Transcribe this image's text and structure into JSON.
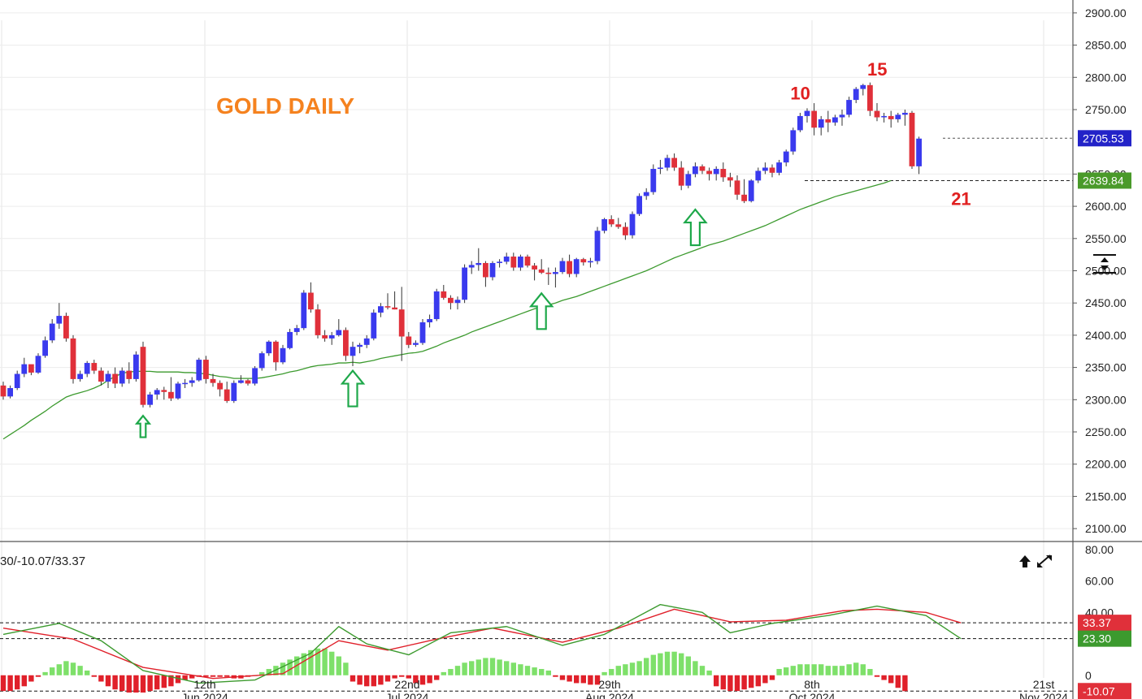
{
  "chart_data": {
    "type": "candlestick",
    "title": "GOLD DAILY",
    "price_axis": {
      "ticks": [
        "2900.00",
        "2850.00",
        "2800.00",
        "2750.00",
        "2650.00",
        "2600.00",
        "2550.00",
        "2500.00",
        "2450.00",
        "2400.00",
        "2350.00",
        "2300.00",
        "2250.00",
        "2200.00",
        "2150.00",
        "2100.00"
      ],
      "range": [
        2080,
        2920
      ]
    },
    "x_axis": {
      "labels": [
        {
          "day": "th",
          "month": "2024"
        },
        {
          "day": "12th",
          "month": "Jun 2024"
        },
        {
          "day": "22nd",
          "month": "Jul 2024"
        },
        {
          "day": "29th",
          "month": "Aug 2024"
        },
        {
          "day": "8th",
          "month": "Oct 2024"
        },
        {
          "day": "21st",
          "month": "Nov 2024"
        }
      ]
    },
    "last_price": {
      "label": "2705.53",
      "value": 2705.53,
      "color": "#2323c8"
    },
    "ma_value": {
      "label": "2639.84",
      "value": 2639.84,
      "color": "#4a9a2a"
    },
    "up_color": "#3a3aee",
    "down_color": "#e0303a",
    "ma_color": "#3c9a2e",
    "candles": [
      [
        2322,
        2328,
        2300,
        2305
      ],
      [
        2305,
        2322,
        2302,
        2318
      ],
      [
        2318,
        2345,
        2315,
        2340
      ],
      [
        2340,
        2365,
        2335,
        2355
      ],
      [
        2355,
        2352,
        2338,
        2342
      ],
      [
        2342,
        2372,
        2340,
        2368
      ],
      [
        2368,
        2398,
        2365,
        2392
      ],
      [
        2392,
        2425,
        2388,
        2418
      ],
      [
        2418,
        2450,
        2410,
        2430
      ],
      [
        2430,
        2435,
        2390,
        2395
      ],
      [
        2395,
        2400,
        2325,
        2332
      ],
      [
        2332,
        2345,
        2328,
        2340
      ],
      [
        2340,
        2360,
        2335,
        2357
      ],
      [
        2357,
        2362,
        2340,
        2345
      ],
      [
        2345,
        2350,
        2322,
        2328
      ],
      [
        2328,
        2345,
        2318,
        2340
      ],
      [
        2340,
        2350,
        2318,
        2325
      ],
      [
        2325,
        2350,
        2320,
        2345
      ],
      [
        2345,
        2358,
        2325,
        2332
      ],
      [
        2332,
        2375,
        2328,
        2370
      ],
      [
        2382,
        2390,
        2288,
        2292
      ],
      [
        2292,
        2312,
        2288,
        2308
      ],
      [
        2308,
        2318,
        2300,
        2315
      ],
      [
        2315,
        2320,
        2300,
        2312
      ],
      [
        2312,
        2335,
        2298,
        2302
      ],
      [
        2302,
        2328,
        2300,
        2325
      ],
      [
        2325,
        2332,
        2318,
        2326
      ],
      [
        2326,
        2335,
        2320,
        2330
      ],
      [
        2330,
        2365,
        2328,
        2362
      ],
      [
        2362,
        2368,
        2325,
        2332
      ],
      [
        2332,
        2340,
        2320,
        2326
      ],
      [
        2326,
        2330,
        2305,
        2316
      ],
      [
        2316,
        2328,
        2295,
        2298
      ],
      [
        2298,
        2330,
        2295,
        2326
      ],
      [
        2326,
        2338,
        2325,
        2330
      ],
      [
        2330,
        2332,
        2322,
        2325
      ],
      [
        2325,
        2352,
        2322,
        2349
      ],
      [
        2349,
        2375,
        2345,
        2372
      ],
      [
        2372,
        2392,
        2368,
        2390
      ],
      [
        2390,
        2392,
        2345,
        2358
      ],
      [
        2358,
        2385,
        2355,
        2380
      ],
      [
        2380,
        2410,
        2378,
        2405
      ],
      [
        2405,
        2416,
        2400,
        2411
      ],
      [
        2411,
        2470,
        2408,
        2466
      ],
      [
        2466,
        2482,
        2435,
        2440
      ],
      [
        2440,
        2448,
        2395,
        2400
      ],
      [
        2400,
        2408,
        2390,
        2395
      ],
      [
        2395,
        2405,
        2385,
        2400
      ],
      [
        2400,
        2425,
        2398,
        2408
      ],
      [
        2408,
        2412,
        2360,
        2368
      ],
      [
        2368,
        2390,
        2352,
        2382
      ],
      [
        2382,
        2388,
        2372,
        2385
      ],
      [
        2385,
        2400,
        2380,
        2395
      ],
      [
        2395,
        2440,
        2392,
        2435
      ],
      [
        2435,
        2450,
        2428,
        2445
      ],
      [
        2445,
        2465,
        2440,
        2443
      ],
      [
        2443,
        2468,
        2440,
        2440
      ],
      [
        2440,
        2475,
        2360,
        2398
      ],
      [
        2398,
        2405,
        2380,
        2385
      ],
      [
        2385,
        2392,
        2382,
        2388
      ],
      [
        2388,
        2425,
        2385,
        2420
      ],
      [
        2420,
        2432,
        2412,
        2425
      ],
      [
        2425,
        2472,
        2422,
        2468
      ],
      [
        2468,
        2478,
        2455,
        2458
      ],
      [
        2458,
        2462,
        2440,
        2450
      ],
      [
        2450,
        2460,
        2440,
        2455
      ],
      [
        2455,
        2510,
        2450,
        2505
      ],
      [
        2505,
        2515,
        2495,
        2509
      ],
      [
        2509,
        2535,
        2500,
        2512
      ],
      [
        2512,
        2515,
        2475,
        2490
      ],
      [
        2490,
        2515,
        2485,
        2512
      ],
      [
        2512,
        2518,
        2505,
        2514
      ],
      [
        2514,
        2528,
        2510,
        2522
      ],
      [
        2522,
        2528,
        2500,
        2505
      ],
      [
        2505,
        2525,
        2500,
        2522
      ],
      [
        2522,
        2525,
        2505,
        2508
      ],
      [
        2508,
        2512,
        2485,
        2502
      ],
      [
        2502,
        2518,
        2495,
        2497
      ],
      [
        2497,
        2505,
        2478,
        2495
      ],
      [
        2495,
        2505,
        2474,
        2498
      ],
      [
        2498,
        2520,
        2495,
        2515
      ],
      [
        2515,
        2525,
        2490,
        2495
      ],
      [
        2495,
        2520,
        2490,
        2518
      ],
      [
        2518,
        2520,
        2508,
        2513
      ],
      [
        2513,
        2520,
        2505,
        2515
      ],
      [
        2515,
        2568,
        2510,
        2562
      ],
      [
        2562,
        2582,
        2558,
        2580
      ],
      [
        2580,
        2586,
        2568,
        2572
      ],
      [
        2572,
        2582,
        2565,
        2568
      ],
      [
        2568,
        2575,
        2548,
        2555
      ],
      [
        2555,
        2592,
        2550,
        2588
      ],
      [
        2588,
        2620,
        2585,
        2616
      ],
      [
        2616,
        2628,
        2610,
        2622
      ],
      [
        2622,
        2665,
        2618,
        2658
      ],
      [
        2658,
        2672,
        2650,
        2660
      ],
      [
        2660,
        2680,
        2655,
        2675
      ],
      [
        2675,
        2682,
        2655,
        2660
      ],
      [
        2660,
        2670,
        2625,
        2632
      ],
      [
        2632,
        2655,
        2628,
        2650
      ],
      [
        2650,
        2668,
        2645,
        2662
      ],
      [
        2662,
        2665,
        2650,
        2655
      ],
      [
        2655,
        2660,
        2640,
        2650
      ],
      [
        2650,
        2662,
        2640,
        2658
      ],
      [
        2658,
        2668,
        2638,
        2645
      ],
      [
        2645,
        2652,
        2630,
        2640
      ],
      [
        2640,
        2648,
        2610,
        2618
      ],
      [
        2618,
        2642,
        2605,
        2608
      ],
      [
        2608,
        2642,
        2606,
        2640
      ],
      [
        2640,
        2660,
        2636,
        2655
      ],
      [
        2655,
        2668,
        2650,
        2660
      ],
      [
        2660,
        2665,
        2645,
        2652
      ],
      [
        2652,
        2672,
        2648,
        2668
      ],
      [
        2668,
        2688,
        2662,
        2685
      ],
      [
        2685,
        2722,
        2680,
        2718
      ],
      [
        2718,
        2745,
        2715,
        2740
      ],
      [
        2740,
        2752,
        2730,
        2748
      ],
      [
        2748,
        2760,
        2710,
        2722
      ],
      [
        2722,
        2740,
        2710,
        2735
      ],
      [
        2735,
        2748,
        2715,
        2730
      ],
      [
        2730,
        2742,
        2725,
        2738
      ],
      [
        2738,
        2750,
        2725,
        2742
      ],
      [
        2742,
        2770,
        2738,
        2765
      ],
      [
        2765,
        2785,
        2760,
        2782
      ],
      [
        2782,
        2790,
        2772,
        2788
      ],
      [
        2788,
        2792,
        2740,
        2748
      ],
      [
        2748,
        2760,
        2732,
        2738
      ],
      [
        2738,
        2745,
        2730,
        2740
      ],
      [
        2740,
        2748,
        2722,
        2735
      ],
      [
        2735,
        2745,
        2730,
        2742
      ],
      [
        2742,
        2750,
        2725,
        2745
      ],
      [
        2745,
        2748,
        2658,
        2662
      ],
      [
        2662,
        2708,
        2650,
        2705
      ]
    ],
    "ma": [
      2239,
      2246,
      2253,
      2260,
      2268,
      2275,
      2282,
      2290,
      2297,
      2304,
      2308,
      2311,
      2314,
      2318,
      2323,
      2330,
      2336,
      2341,
      2343,
      2344,
      2344,
      2344,
      2343,
      2343,
      2343,
      2343,
      2342,
      2342,
      2341,
      2340,
      2338,
      2336,
      2335,
      2333,
      2333,
      2333,
      2333,
      2334,
      2336,
      2338,
      2340,
      2343,
      2345,
      2348,
      2351,
      2353,
      2354,
      2355,
      2357,
      2357,
      2358,
      2357,
      2359,
      2361,
      2364,
      2366,
      2368,
      2370,
      2372,
      2373,
      2375,
      2379,
      2383,
      2388,
      2392,
      2396,
      2400,
      2405,
      2409,
      2413,
      2417,
      2421,
      2425,
      2429,
      2433,
      2437,
      2441,
      2444,
      2447,
      2450,
      2454,
      2457,
      2460,
      2464,
      2468,
      2472,
      2476,
      2480,
      2484,
      2488,
      2492,
      2496,
      2500,
      2505,
      2510,
      2515,
      2520,
      2524,
      2528,
      2532,
      2536,
      2540,
      2543,
      2546,
      2550,
      2554,
      2558,
      2562,
      2566,
      2570,
      2575,
      2580,
      2585,
      2590,
      2595,
      2599,
      2603,
      2607,
      2611,
      2615,
      2618,
      2621,
      2624,
      2627,
      2630,
      2633,
      2636,
      2640
    ],
    "arrows": [
      {
        "x_index": 20,
        "price": 2275
      },
      {
        "x_index": 50,
        "price": 2345
      },
      {
        "x_index": 77,
        "price": 2465
      },
      {
        "x_index": 99,
        "price": 2595
      }
    ],
    "annotations": [
      {
        "text": "10",
        "x_index": 114,
        "price": 2766
      },
      {
        "text": "15",
        "x_index": 125,
        "price": 2803
      },
      {
        "text": "21",
        "x_index": 137,
        "price": 2602
      }
    ],
    "indicator": {
      "legend": "30/-10.07/33.37",
      "ticks": [
        "80.00",
        "60.00",
        "40.00",
        "0"
      ],
      "range": [
        -12,
        82
      ],
      "dashed_levels": [
        33.37,
        23.3,
        -10.07
      ],
      "badges": [
        {
          "label": "33.37",
          "value": 33.37,
          "color": "#e0303a"
        },
        {
          "label": "23.30",
          "value": 23.3,
          "color": "#3c9a2e"
        },
        {
          "label": "-10.07",
          "value": -10.07,
          "color": "#e0303a"
        }
      ],
      "red_line": [
        {
          "i": 0,
          "v": 30
        },
        {
          "i": 10,
          "v": 23
        },
        {
          "i": 20,
          "v": 5
        },
        {
          "i": 30,
          "v": -2
        },
        {
          "i": 40,
          "v": 1
        },
        {
          "i": 48,
          "v": 22
        },
        {
          "i": 55,
          "v": 16
        },
        {
          "i": 62,
          "v": 23
        },
        {
          "i": 70,
          "v": 30
        },
        {
          "i": 80,
          "v": 21
        },
        {
          "i": 88,
          "v": 30
        },
        {
          "i": 96,
          "v": 42
        },
        {
          "i": 104,
          "v": 34
        },
        {
          "i": 112,
          "v": 35
        },
        {
          "i": 120,
          "v": 41
        },
        {
          "i": 125,
          "v": 42
        },
        {
          "i": 132,
          "v": 40
        },
        {
          "i": 137,
          "v": 33.37
        }
      ],
      "green_line": [
        {
          "i": 0,
          "v": 26
        },
        {
          "i": 8,
          "v": 33
        },
        {
          "i": 14,
          "v": 22
        },
        {
          "i": 20,
          "v": 3
        },
        {
          "i": 28,
          "v": -5
        },
        {
          "i": 36,
          "v": -3
        },
        {
          "i": 44,
          "v": 14
        },
        {
          "i": 48,
          "v": 31
        },
        {
          "i": 52,
          "v": 20
        },
        {
          "i": 58,
          "v": 13
        },
        {
          "i": 64,
          "v": 27
        },
        {
          "i": 72,
          "v": 31
        },
        {
          "i": 80,
          "v": 19
        },
        {
          "i": 86,
          "v": 26
        },
        {
          "i": 94,
          "v": 45
        },
        {
          "i": 100,
          "v": 40
        },
        {
          "i": 104,
          "v": 27
        },
        {
          "i": 110,
          "v": 33
        },
        {
          "i": 118,
          "v": 38
        },
        {
          "i": 125,
          "v": 44
        },
        {
          "i": 132,
          "v": 38
        },
        {
          "i": 137,
          "v": 23.3
        }
      ],
      "hist": [
        -10,
        -10,
        -9,
        -7,
        -4,
        -1,
        2,
        5,
        7,
        9,
        8,
        6,
        3,
        -1,
        -4,
        -7,
        -9,
        -10,
        -11,
        -11,
        -11,
        -10,
        -9,
        -8,
        -7,
        -5,
        -3,
        -2,
        -1,
        -1,
        -1,
        -1,
        -1,
        -2,
        -2,
        -1,
        0,
        2,
        4,
        6,
        8,
        10,
        12,
        14,
        16,
        17,
        17,
        15,
        12,
        8,
        -4,
        -6,
        -7,
        -7,
        -6,
        -4,
        -2,
        -1,
        -2,
        -5,
        -6,
        -5,
        -3,
        2,
        4,
        6,
        8,
        9,
        10,
        11,
        11,
        10,
        9,
        8,
        7,
        6,
        5,
        4,
        3,
        -1,
        -3,
        -4,
        -5,
        -5,
        -6,
        -6,
        2,
        4,
        6,
        7,
        8,
        9,
        11,
        13,
        14,
        15,
        15,
        14,
        12,
        9,
        6,
        3,
        -7,
        -9,
        -10,
        -10,
        -9,
        -8,
        -7,
        -5,
        -3,
        4,
        5,
        6,
        7,
        7,
        7,
        7,
        6,
        6,
        6,
        7,
        8,
        7,
        4,
        -1,
        -3,
        -5,
        -8,
        -10.07
      ]
    }
  }
}
